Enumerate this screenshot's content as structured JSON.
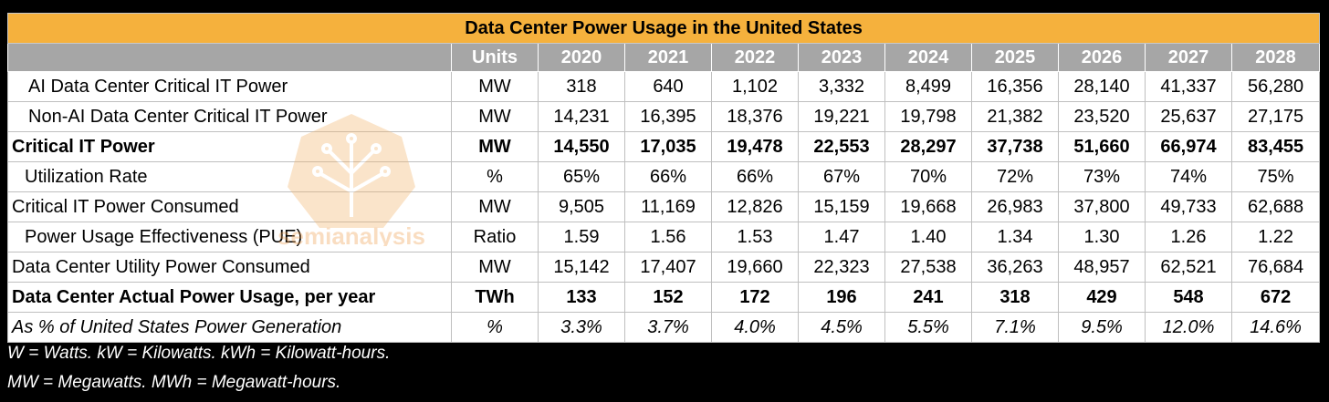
{
  "title": "Data Center Power Usage in the United States",
  "watermark_text": "semianalysis",
  "columns": [
    "Units",
    "2020",
    "2021",
    "2022",
    "2023",
    "2024",
    "2025",
    "2026",
    "2027",
    "2028"
  ],
  "rows": [
    {
      "label": "AI Data Center Critical IT Power",
      "unit": "MW",
      "values": [
        "318",
        "640",
        "1,102",
        "3,332",
        "8,499",
        "16,356",
        "28,140",
        "41,337",
        "56,280"
      ],
      "indent": 1,
      "style": "normal"
    },
    {
      "label": "Non-AI Data Center Critical IT Power",
      "unit": "MW",
      "values": [
        "14,231",
        "16,395",
        "18,376",
        "19,221",
        "19,798",
        "21,382",
        "23,520",
        "25,637",
        "27,175"
      ],
      "indent": 1,
      "style": "normal"
    },
    {
      "label": "Critical IT Power",
      "unit": "MW",
      "values": [
        "14,550",
        "17,035",
        "19,478",
        "22,553",
        "28,297",
        "37,738",
        "51,660",
        "66,974",
        "83,455"
      ],
      "indent": 0,
      "style": "bold"
    },
    {
      "label": "Utilization Rate",
      "unit": "%",
      "values": [
        "65%",
        "66%",
        "66%",
        "67%",
        "70%",
        "72%",
        "73%",
        "74%",
        "75%"
      ],
      "indent": 2,
      "style": "normal"
    },
    {
      "label": "Critical IT Power Consumed",
      "unit": "MW",
      "values": [
        "9,505",
        "11,169",
        "12,826",
        "15,159",
        "19,668",
        "26,983",
        "37,800",
        "49,733",
        "62,688"
      ],
      "indent": 0,
      "style": "normal"
    },
    {
      "label": "Power Usage Effectiveness (PUE)",
      "unit": "Ratio",
      "values": [
        "1.59",
        "1.56",
        "1.53",
        "1.47",
        "1.40",
        "1.34",
        "1.30",
        "1.26",
        "1.22"
      ],
      "indent": 2,
      "style": "normal"
    },
    {
      "label": "Data Center Utility Power Consumed",
      "unit": "MW",
      "values": [
        "15,142",
        "17,407",
        "19,660",
        "22,323",
        "27,538",
        "36,263",
        "48,957",
        "62,521",
        "76,684"
      ],
      "indent": 0,
      "style": "normal"
    },
    {
      "label": "Data Center Actual Power Usage, per year",
      "unit": "TWh",
      "values": [
        "133",
        "152",
        "172",
        "196",
        "241",
        "318",
        "429",
        "548",
        "672"
      ],
      "indent": 0,
      "style": "bold"
    },
    {
      "label": "As % of United States Power Generation",
      "unit": "%",
      "values": [
        "3.3%",
        "3.7%",
        "4.0%",
        "4.5%",
        "5.5%",
        "7.1%",
        "9.5%",
        "12.0%",
        "14.6%"
      ],
      "indent": 0,
      "style": "italic"
    }
  ],
  "notes": [
    "W = Watts. kW = Kilowatts. kWh = Kilowatt-hours.",
    "MW = Megawatts. MWh = Megawatt-hours."
  ],
  "colors": {
    "title_bg": "#f5b13d",
    "header_bg": "#a6a6a6",
    "page_bg": "#000000"
  }
}
